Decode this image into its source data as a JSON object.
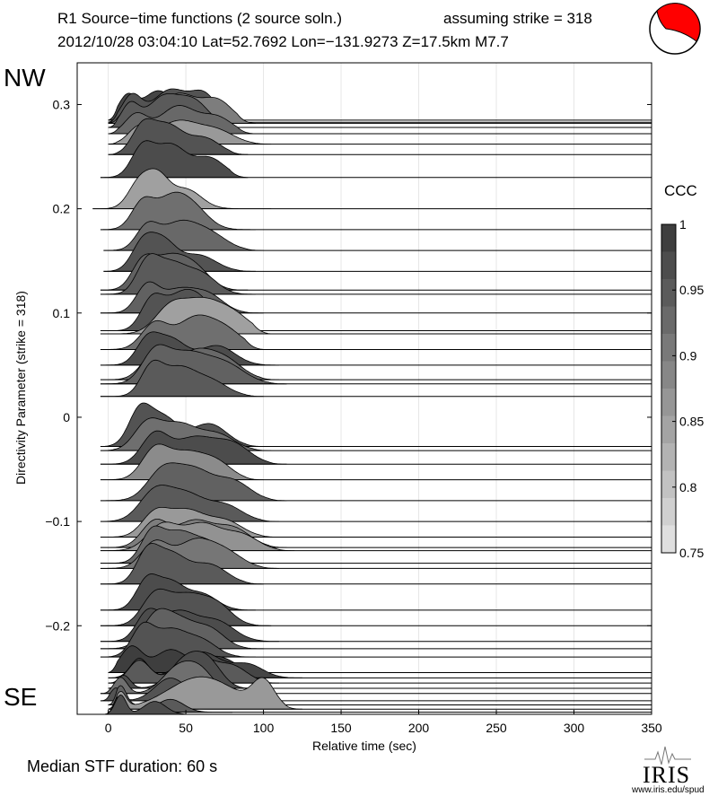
{
  "header": {
    "line1_left": "R1 Source−time functions (2 source soln.)",
    "line1_right": "assuming strike = 318",
    "line2": "2012/10/28 03:04:10  Lat=52.7692 Lon=−131.9273  Z=17.5km  M7.7"
  },
  "side_labels": {
    "top": "NW",
    "bottom": "SE"
  },
  "footer": {
    "median": "Median STF duration: 60 s",
    "logo": "IRIS",
    "url": "www.iris.edu/spud"
  },
  "colors": {
    "mechanism_fill": "#ff0000",
    "grid": "#e6e6e6"
  },
  "chart_data": {
    "type": "area",
    "xlabel": "Relative time (sec)",
    "ylabel": "Directivity Parameter (strike = 318)",
    "xlim": [
      -20,
      350
    ],
    "ylim": [
      -0.285,
      0.34
    ],
    "xticks": [
      0,
      50,
      100,
      150,
      200,
      250,
      300,
      350
    ],
    "yticks": [
      -0.2,
      -0.1,
      0,
      0.1,
      0.2,
      0.3
    ],
    "ytick_labels": [
      "−0.2",
      "−0.1",
      "0",
      "0.1",
      "0.2",
      "0.3"
    ],
    "colorbar": {
      "label": "CCC",
      "range": [
        0.75,
        1
      ],
      "ticks": [
        "1",
        "0.95",
        "0.9",
        "0.85",
        "0.8",
        "0.75"
      ]
    },
    "series": [
      {
        "d": 0.285,
        "start": 0,
        "peaks": [
          [
            12,
            0.7,
            8
          ],
          [
            32,
            0.9,
            14
          ],
          [
            60,
            0.6,
            14
          ]
        ],
        "end": 75,
        "ccc": 0.98
      },
      {
        "d": 0.283,
        "start": 0,
        "peaks": [
          [
            15,
            0.8,
            9
          ],
          [
            40,
            1.0,
            16
          ],
          [
            62,
            0.8,
            12
          ]
        ],
        "end": 85,
        "ccc": 0.96
      },
      {
        "d": 0.282,
        "start": 0,
        "peaks": [
          [
            15,
            0.6,
            8
          ],
          [
            45,
            0.9,
            16
          ],
          [
            70,
            0.7,
            14
          ]
        ],
        "end": 95,
        "ccc": 0.9
      },
      {
        "d": 0.278,
        "start": 0,
        "peaks": [
          [
            14,
            0.7,
            8
          ],
          [
            35,
            0.9,
            14
          ],
          [
            55,
            0.8,
            14
          ]
        ],
        "end": 80,
        "ccc": 0.95
      },
      {
        "d": 0.272,
        "start": 0,
        "peaks": [
          [
            18,
            0.6,
            10
          ],
          [
            45,
            0.85,
            16
          ],
          [
            70,
            0.5,
            14
          ]
        ],
        "end": 95,
        "ccc": 0.93
      },
      {
        "d": 0.262,
        "start": 0,
        "peaks": [
          [
            20,
            0.5,
            10
          ],
          [
            45,
            0.7,
            18
          ],
          [
            70,
            0.4,
            16
          ]
        ],
        "end": 105,
        "ccc": 0.86
      },
      {
        "d": 0.252,
        "start": 0,
        "peaks": [
          [
            22,
            0.8,
            10
          ],
          [
            38,
            0.9,
            14
          ],
          [
            62,
            0.5,
            14
          ]
        ],
        "end": 90,
        "ccc": 0.96
      },
      {
        "d": 0.23,
        "start": -5,
        "peaks": [
          [
            22,
            0.9,
            10
          ],
          [
            40,
            1.0,
            14
          ],
          [
            65,
            0.6,
            14
          ]
        ],
        "end": 90,
        "ccc": 0.97
      },
      {
        "d": 0.2,
        "start": -10,
        "peaks": [
          [
            20,
            0.8,
            10
          ],
          [
            32,
            0.9,
            10
          ],
          [
            50,
            0.6,
            14
          ]
        ],
        "end": 105,
        "ccc": 0.85
      },
      {
        "d": 0.18,
        "start": -5,
        "peaks": [
          [
            22,
            0.8,
            10
          ],
          [
            40,
            0.9,
            14
          ],
          [
            55,
            0.6,
            14
          ]
        ],
        "end": 95,
        "ccc": 0.92
      },
      {
        "d": 0.16,
        "start": -3,
        "peaks": [
          [
            25,
            0.7,
            10
          ],
          [
            45,
            0.8,
            16
          ],
          [
            65,
            0.5,
            16
          ]
        ],
        "end": 100,
        "ccc": 0.93
      },
      {
        "d": 0.14,
        "start": -3,
        "peaks": [
          [
            22,
            0.8,
            10
          ],
          [
            35,
            0.9,
            12
          ],
          [
            58,
            0.5,
            16
          ]
        ],
        "end": 95,
        "ccc": 0.96
      },
      {
        "d": 0.122,
        "start": -5,
        "peaks": [
          [
            22,
            0.8,
            10
          ],
          [
            38,
            0.9,
            14
          ],
          [
            55,
            0.7,
            14
          ]
        ],
        "end": 90,
        "ccc": 0.94
      },
      {
        "d": 0.118,
        "start": -5,
        "peaks": [
          [
            25,
            0.9,
            10
          ],
          [
            40,
            0.9,
            14
          ],
          [
            60,
            0.6,
            14
          ]
        ],
        "end": 95,
        "ccc": 0.95
      },
      {
        "d": 0.1,
        "start": -5,
        "peaks": [
          [
            25,
            0.8,
            10
          ],
          [
            45,
            0.7,
            16
          ],
          [
            65,
            0.5,
            14
          ]
        ],
        "end": 100,
        "ccc": 0.94
      },
      {
        "d": 0.083,
        "start": -5,
        "peaks": [
          [
            28,
            0.9,
            10
          ],
          [
            45,
            0.9,
            14
          ],
          [
            60,
            0.8,
            14
          ]
        ],
        "end": 95,
        "ccc": 0.96
      },
      {
        "d": 0.08,
        "start": -5,
        "peaks": [
          [
            40,
            0.8,
            14
          ],
          [
            60,
            0.9,
            16
          ],
          [
            80,
            0.6,
            16
          ]
        ],
        "end": 105,
        "ccc": 0.85
      },
      {
        "d": 0.065,
        "start": -5,
        "peaks": [
          [
            30,
            0.8,
            12
          ],
          [
            55,
            0.9,
            16
          ],
          [
            75,
            0.6,
            16
          ]
        ],
        "end": 100,
        "ccc": 0.92
      },
      {
        "d": 0.05,
        "start": -5,
        "peaks": [
          [
            25,
            0.7,
            10
          ],
          [
            40,
            0.8,
            14
          ],
          [
            70,
            0.6,
            16
          ]
        ],
        "end": 110,
        "ccc": 0.97
      },
      {
        "d": 0.036,
        "start": -5,
        "peaks": [
          [
            30,
            0.8,
            12
          ],
          [
            55,
            0.8,
            16
          ],
          [
            75,
            0.6,
            16
          ]
        ],
        "end": 110,
        "ccc": 0.93
      },
      {
        "d": 0.032,
        "start": -5,
        "peaks": [
          [
            30,
            0.9,
            12
          ],
          [
            50,
            0.9,
            18
          ],
          [
            75,
            0.6,
            18
          ]
        ],
        "end": 115,
        "ccc": 0.94
      },
      {
        "d": 0.02,
        "start": -5,
        "peaks": [
          [
            28,
            0.9,
            10
          ],
          [
            45,
            0.8,
            14
          ],
          [
            65,
            0.5,
            16
          ]
        ],
        "end": 100,
        "ccc": 0.95
      },
      {
        "d": -0.028,
        "start": -5,
        "peaks": [
          [
            20,
            1.0,
            10
          ],
          [
            35,
            0.9,
            14
          ],
          [
            65,
            0.7,
            16
          ]
        ],
        "end": 100,
        "ccc": 0.96
      },
      {
        "d": -0.032,
        "start": -5,
        "peaks": [
          [
            25,
            0.8,
            12
          ],
          [
            45,
            0.8,
            16
          ],
          [
            70,
            0.5,
            16
          ]
        ],
        "end": 105,
        "ccc": 0.92
      },
      {
        "d": -0.045,
        "start": -5,
        "peaks": [
          [
            30,
            0.9,
            12
          ],
          [
            55,
            0.8,
            18
          ],
          [
            80,
            0.6,
            16
          ]
        ],
        "end": 115,
        "ccc": 0.97
      },
      {
        "d": -0.06,
        "start": -5,
        "peaks": [
          [
            30,
            0.9,
            12
          ],
          [
            50,
            0.8,
            16
          ],
          [
            70,
            0.5,
            14
          ]
        ],
        "end": 100,
        "ccc": 0.88
      },
      {
        "d": -0.08,
        "start": -5,
        "peaks": [
          [
            35,
            0.9,
            14
          ],
          [
            55,
            0.9,
            16
          ],
          [
            80,
            0.6,
            16
          ]
        ],
        "end": 115,
        "ccc": 0.94
      },
      {
        "d": -0.1,
        "start": -5,
        "peaks": [
          [
            30,
            0.9,
            14
          ],
          [
            50,
            0.8,
            16
          ],
          [
            75,
            0.5,
            16
          ]
        ],
        "end": 110,
        "ccc": 0.95
      },
      {
        "d": -0.115,
        "start": -5,
        "peaks": [
          [
            30,
            0.7,
            12
          ],
          [
            50,
            0.8,
            16
          ],
          [
            75,
            0.5,
            16
          ]
        ],
        "end": 110,
        "ccc": 0.86
      },
      {
        "d": -0.125,
        "start": -5,
        "peaks": [
          [
            30,
            0.8,
            12
          ],
          [
            55,
            0.8,
            16
          ],
          [
            80,
            0.6,
            16
          ]
        ],
        "end": 115,
        "ccc": 0.9
      },
      {
        "d": -0.128,
        "start": -5,
        "peaks": [
          [
            35,
            0.8,
            14
          ],
          [
            60,
            0.8,
            16
          ],
          [
            85,
            0.5,
            16
          ]
        ],
        "end": 120,
        "ccc": 0.87
      },
      {
        "d": -0.14,
        "start": -5,
        "peaks": [
          [
            28,
            0.9,
            10
          ],
          [
            45,
            0.9,
            14
          ],
          [
            65,
            0.6,
            14
          ]
        ],
        "end": 100,
        "ccc": 0.93
      },
      {
        "d": -0.145,
        "start": -5,
        "peaks": [
          [
            30,
            0.8,
            12
          ],
          [
            55,
            0.8,
            16
          ],
          [
            75,
            0.5,
            16
          ]
        ],
        "end": 110,
        "ccc": 0.91
      },
      {
        "d": -0.16,
        "start": -5,
        "peaks": [
          [
            25,
            0.9,
            10
          ],
          [
            40,
            0.9,
            14
          ],
          [
            65,
            0.6,
            16
          ]
        ],
        "end": 100,
        "ccc": 0.95
      },
      {
        "d": -0.185,
        "start": -5,
        "peaks": [
          [
            25,
            0.9,
            10
          ],
          [
            40,
            0.8,
            12
          ],
          [
            60,
            0.5,
            14
          ]
        ],
        "end": 95,
        "ccc": 0.97
      },
      {
        "d": -0.2,
        "start": -5,
        "peaks": [
          [
            30,
            0.9,
            12
          ],
          [
            50,
            0.9,
            16
          ],
          [
            70,
            0.6,
            14
          ]
        ],
        "end": 105,
        "ccc": 0.96
      },
      {
        "d": -0.215,
        "start": -5,
        "peaks": [
          [
            25,
            0.8,
            10
          ],
          [
            45,
            0.9,
            16
          ],
          [
            70,
            0.6,
            16
          ]
        ],
        "end": 110,
        "ccc": 0.97
      },
      {
        "d": -0.222,
        "start": -5,
        "peaks": [
          [
            30,
            0.9,
            12
          ],
          [
            45,
            0.8,
            14
          ],
          [
            65,
            0.6,
            14
          ]
        ],
        "end": 100,
        "ccc": 0.94
      },
      {
        "d": -0.23,
        "start": -5,
        "peaks": [
          [
            22,
            0.9,
            10
          ],
          [
            40,
            0.8,
            14
          ],
          [
            60,
            0.5,
            14
          ]
        ],
        "end": 95,
        "ccc": 0.96
      },
      {
        "d": -0.245,
        "start": 0,
        "peaks": [
          [
            15,
            0.8,
            10
          ],
          [
            40,
            0.7,
            14
          ],
          [
            70,
            0.5,
            16
          ]
        ],
        "end": 100,
        "ccc": 0.99
      },
      {
        "d": -0.25,
        "start": 0,
        "peaks": [
          [
            20,
            0.6,
            8
          ],
          [
            60,
            0.8,
            18
          ],
          [
            90,
            0.4,
            14
          ]
        ],
        "end": 125,
        "ccc": 0.98
      },
      {
        "d": -0.255,
        "start": 0,
        "peaks": [
          [
            20,
            0.7,
            10
          ],
          [
            55,
            0.9,
            16
          ],
          [
            80,
            0.5,
            14
          ]
        ],
        "end": 110,
        "ccc": 0.95
      },
      {
        "d": -0.26,
        "start": 0,
        "peaks": [
          [
            10,
            0.4,
            6
          ],
          [
            50,
            0.9,
            14
          ],
          [
            65,
            0.7,
            12
          ]
        ],
        "end": 95,
        "ccc": 0.97
      },
      {
        "d": -0.265,
        "start": -5,
        "peaks": [
          [
            8,
            0.5,
            6
          ],
          [
            45,
            0.8,
            14
          ],
          [
            60,
            0.6,
            12
          ]
        ],
        "end": 85,
        "ccc": 0.92
      },
      {
        "d": -0.272,
        "start": -5,
        "peaks": [
          [
            5,
            0.4,
            5
          ],
          [
            40,
            0.7,
            14
          ],
          [
            70,
            0.4,
            14
          ]
        ],
        "end": 95,
        "ccc": 0.96
      },
      {
        "d": -0.276,
        "start": 0,
        "peaks": [
          [
            8,
            0.6,
            5
          ],
          [
            45,
            0.4,
            12
          ]
        ],
        "end": 90,
        "ccc": 0.94
      },
      {
        "d": -0.28,
        "start": 0,
        "peaks": [
          [
            8,
            0.5,
            5
          ],
          [
            60,
            1.0,
            30
          ],
          [
            100,
            0.8,
            10
          ]
        ],
        "end": 125,
        "ccc": 0.86
      },
      {
        "d": -0.283,
        "start": 0,
        "peaks": [
          [
            5,
            0.5,
            4
          ],
          [
            40,
            0.4,
            12
          ]
        ],
        "end": 80,
        "ccc": 0.95
      },
      {
        "d": -0.285,
        "start": -5,
        "peaks": [
          [
            8,
            0.6,
            5
          ],
          [
            30,
            0.4,
            10
          ]
        ],
        "end": 60,
        "ccc": 0.97
      }
    ]
  }
}
